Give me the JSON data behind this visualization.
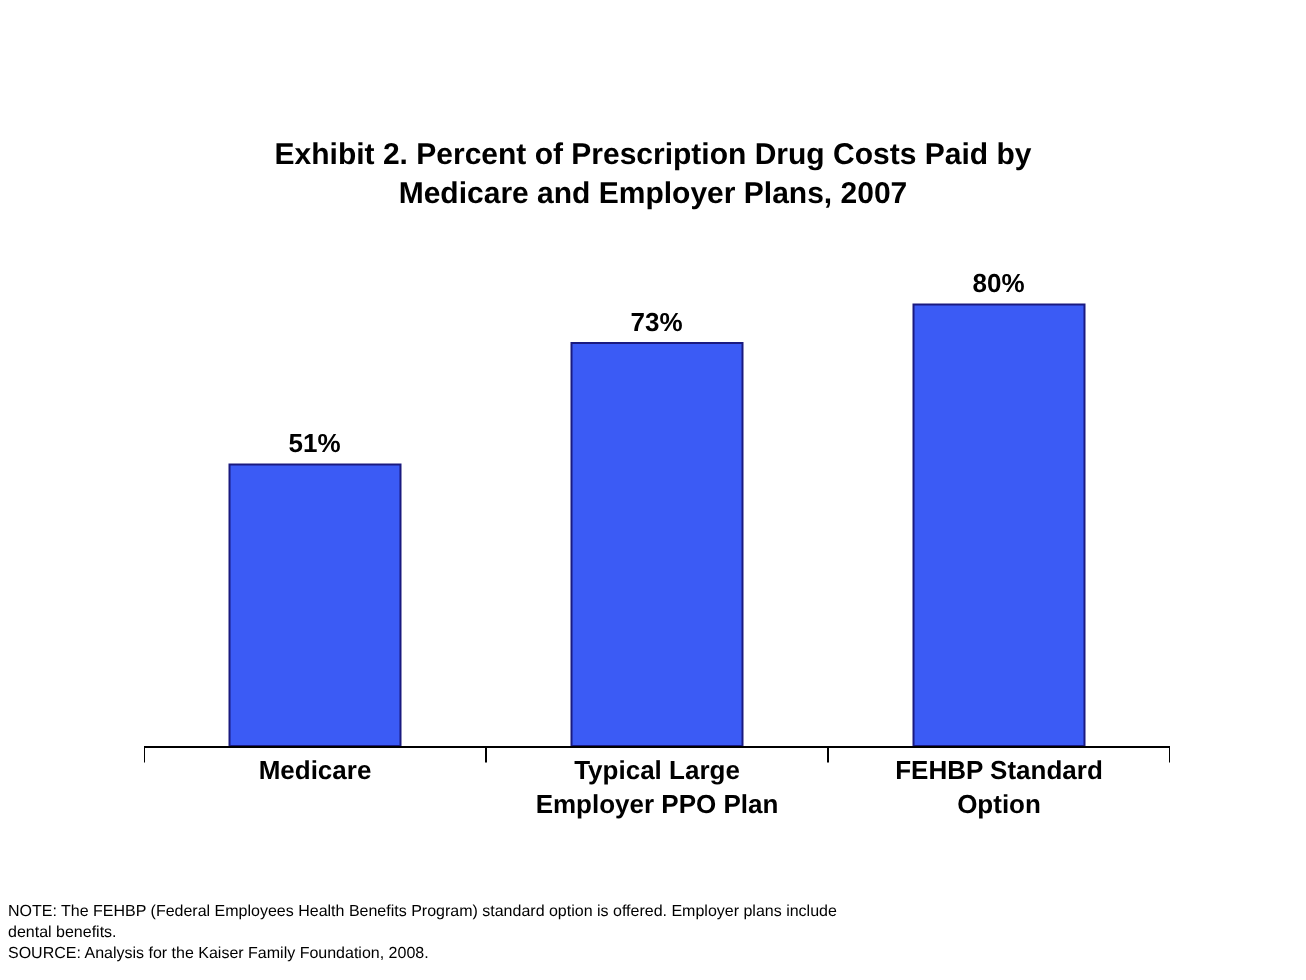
{
  "chart_data": {
    "type": "bar",
    "title": "Exhibit 2. Percent of Prescription Drug Costs Paid by Medicare and Employer Plans, 2007",
    "categories": [
      "Medicare",
      "Typical Large Employer PPO Plan",
      "FEHBP Standard Option"
    ],
    "values": [
      51,
      73,
      80
    ],
    "value_labels": [
      "51%",
      "73%",
      "80%"
    ],
    "color": "#3b5bf5",
    "legend": false,
    "annotations": [
      "NOTE: The FEHBP (Federal Employees Health Benefits Program) standard option is offered. Employer plans include dental benefits.",
      "SOURCE: Analysis for the Kaiser Family Foundation, 2008."
    ]
  }
}
